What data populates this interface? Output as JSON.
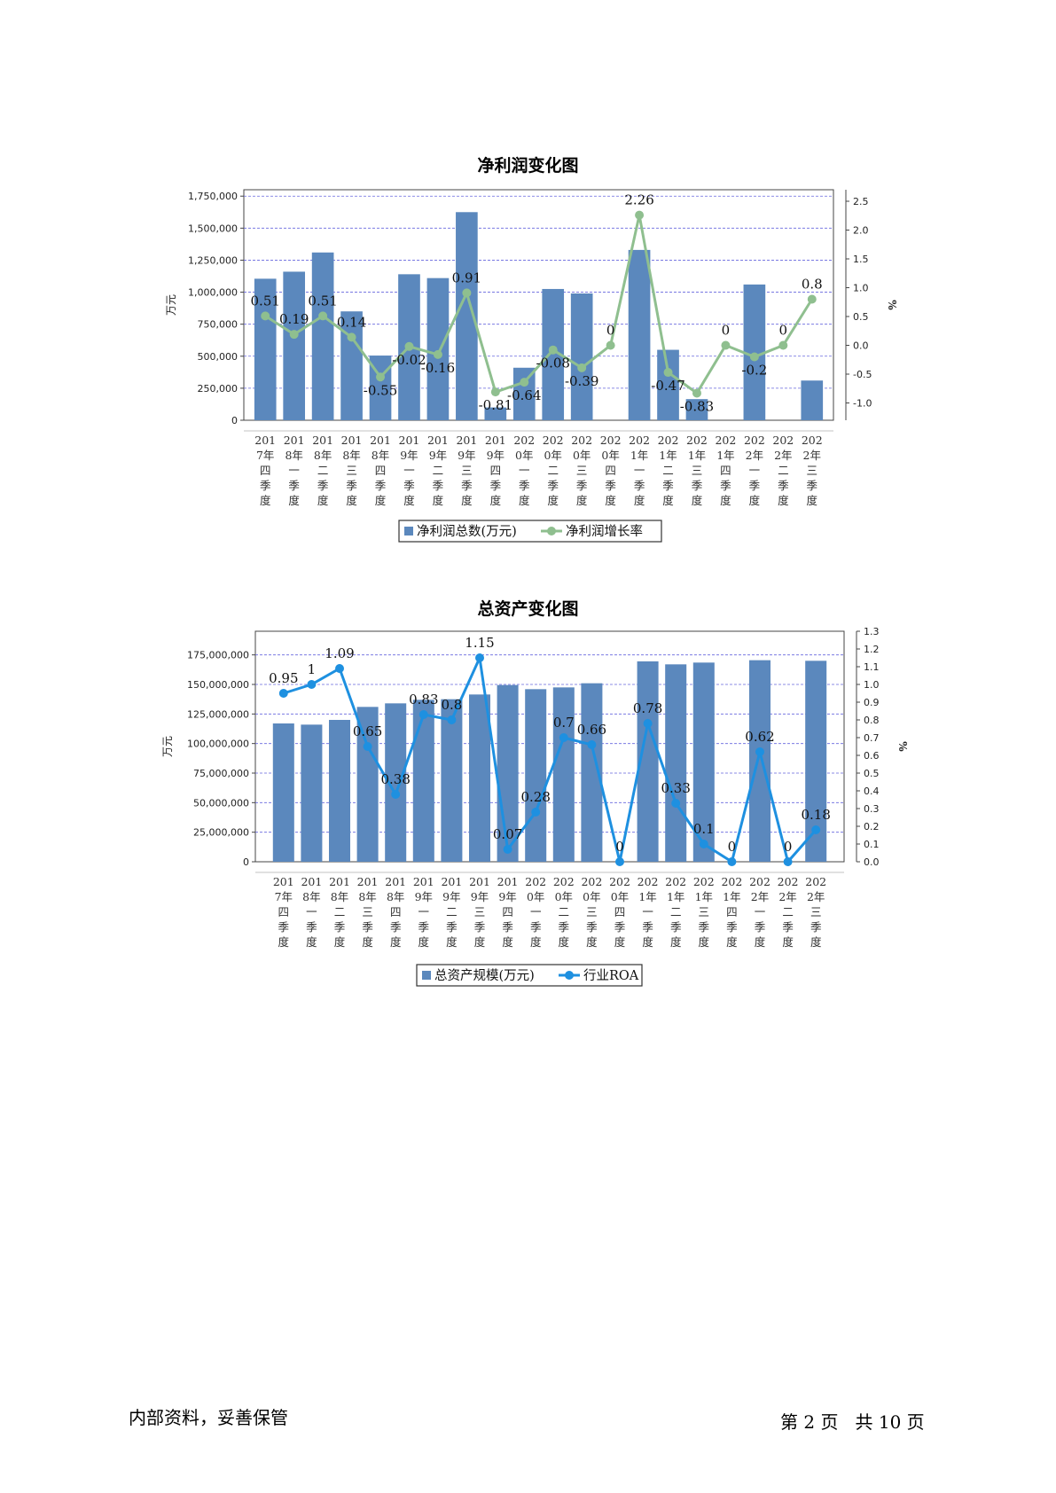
{
  "footer": {
    "left": "内部资料，妥善保管",
    "right": "第 2 页   共 10 页"
  },
  "chart_data": [
    {
      "type": "bar",
      "title": "净利润变化图",
      "ylabel_left": "万元",
      "ylabel_right": "%",
      "y_left_ticks": [
        "0",
        "250,000",
        "500,000",
        "750,000",
        "1,000,000",
        "1,250,000",
        "1,500,000",
        "1,750,000"
      ],
      "y_right_ticks": [
        "-1.0",
        "-0.5",
        "0.0",
        "0.5",
        "1.0",
        "1.5",
        "2.0",
        "2.5"
      ],
      "ylim_left": [
        0,
        1800000
      ],
      "ylim_right": [
        -1.3,
        2.7
      ],
      "grid": true,
      "legend_position": "bottom-center",
      "bar_color": "#5b88bd",
      "line_color": "#8fbf8f",
      "categories": [
        "2017年四季度",
        "2018年一季度",
        "2018年二季度",
        "2018年三季度",
        "2018年四季度",
        "2019年一季度",
        "2019年二季度",
        "2019年三季度",
        "2019年四季度",
        "2020年一季度",
        "2020年二季度",
        "2020年三季度",
        "2020年四季度",
        "2021年一季度",
        "2021年二季度",
        "2021年三季度",
        "2021年四季度",
        "2022年一季度",
        "2022年二季度",
        "2022年三季度"
      ],
      "series": [
        {
          "name": "净利润总数(万元)",
          "kind": "bar",
          "axis": "left",
          "values": [
            1105000,
            1160000,
            1310000,
            850000,
            505000,
            1140000,
            1110000,
            1625000,
            100000,
            410000,
            1025000,
            990000,
            0,
            1330000,
            550000,
            165000,
            0,
            1060000,
            0,
            310000
          ]
        },
        {
          "name": "净利润增长率",
          "kind": "line",
          "axis": "right",
          "values": [
            0.51,
            0.19,
            0.51,
            0.14,
            -0.55,
            -0.02,
            -0.16,
            0.91,
            -0.81,
            -0.64,
            -0.08,
            -0.39,
            0,
            2.26,
            -0.47,
            -0.83,
            0,
            -0.2,
            0,
            0.8
          ],
          "labels": [
            "0.51",
            "0.19",
            "0.51",
            "0.14",
            "-0.55",
            "-0.02",
            "-0.16",
            "0.91",
            "-0.81",
            "-0.64",
            "-0.08",
            "-0.39",
            "0",
            "2.26",
            "-0.47",
            "-0.83",
            "0",
            "-0.2",
            "0",
            "0.8"
          ]
        }
      ]
    },
    {
      "type": "bar",
      "title": "总资产变化图",
      "ylabel_left": "万元",
      "ylabel_right": "%",
      "y_left_ticks": [
        "0",
        "25,000,000",
        "50,000,000",
        "75,000,000",
        "100,000,000",
        "125,000,000",
        "150,000,000",
        "175,000,000"
      ],
      "y_right_ticks": [
        "0.0",
        "0.1",
        "0.2",
        "0.3",
        "0.4",
        "0.5",
        "0.6",
        "0.7",
        "0.8",
        "0.9",
        "1.0",
        "1.1",
        "1.2",
        "1.3"
      ],
      "ylim_left": [
        0,
        195000000
      ],
      "ylim_right": [
        0,
        1.3
      ],
      "grid": true,
      "legend_position": "bottom-center",
      "bar_color": "#5b88bd",
      "line_color": "#1e90e0",
      "categories": [
        "2017年四季度",
        "2018年一季度",
        "2018年二季度",
        "2018年三季度",
        "2018年四季度",
        "2019年一季度",
        "2019年二季度",
        "2019年三季度",
        "2019年四季度",
        "2020年一季度",
        "2020年二季度",
        "2020年三季度",
        "2020年四季度",
        "2021年一季度",
        "2021年二季度",
        "2021年三季度",
        "2021年四季度",
        "2022年一季度",
        "2022年二季度",
        "2022年三季度"
      ],
      "series": [
        {
          "name": "总资产规模(万元)",
          "kind": "bar",
          "axis": "left",
          "values": [
            117000000,
            116000000,
            120000000,
            131000000,
            134000000,
            137000000,
            137500000,
            141500000,
            149500000,
            146000000,
            147500000,
            151000000,
            0,
            169500000,
            167000000,
            168500000,
            0,
            170500000,
            0,
            170000000
          ]
        },
        {
          "name": "行业ROA",
          "kind": "line",
          "axis": "right",
          "values": [
            0.95,
            1,
            1.09,
            0.65,
            0.38,
            0.83,
            0.8,
            1.15,
            0.07,
            0.28,
            0.7,
            0.66,
            0,
            0.78,
            0.33,
            0.1,
            0,
            0.62,
            0,
            0.18
          ],
          "labels": [
            "0.95",
            "1",
            "1.09",
            "0.65",
            "0.38",
            "0.83",
            "0.8",
            "1.15",
            "0.07",
            "0.28",
            "0.7",
            "0.66",
            "0",
            "0.78",
            "0.33",
            "0.1",
            "0",
            "0.62",
            "0",
            "0.18"
          ]
        }
      ]
    }
  ]
}
